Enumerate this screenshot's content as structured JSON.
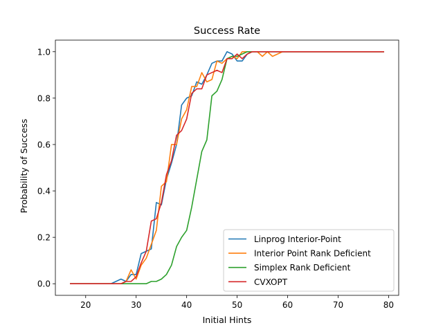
{
  "chart_data": {
    "type": "line",
    "title": "Success Rate",
    "xlabel": "Initial Hints",
    "ylabel": "Probability of Success",
    "xlim": [
      14,
      82
    ],
    "ylim": [
      -0.05,
      1.05
    ],
    "xticks": [
      20,
      30,
      40,
      50,
      60,
      70,
      80
    ],
    "yticks": [
      0.0,
      0.2,
      0.4,
      0.6,
      0.8,
      1.0
    ],
    "xtick_labels": [
      "20",
      "30",
      "40",
      "50",
      "60",
      "70",
      "80"
    ],
    "ytick_labels": [
      "0.0",
      "0.2",
      "0.4",
      "0.6",
      "0.8",
      "1.0"
    ],
    "grid": false,
    "legend_position": "lower-right",
    "x": [
      17,
      18,
      19,
      20,
      21,
      22,
      23,
      24,
      25,
      26,
      27,
      28,
      29,
      30,
      31,
      32,
      33,
      34,
      35,
      36,
      37,
      38,
      39,
      40,
      41,
      42,
      43,
      44,
      45,
      46,
      47,
      48,
      49,
      50,
      51,
      52,
      53,
      54,
      55,
      56,
      57,
      58,
      59,
      60,
      61,
      62,
      63,
      64,
      65,
      66,
      67,
      68,
      69,
      70,
      71,
      72,
      73,
      74,
      75,
      76,
      77,
      78,
      79
    ],
    "series": [
      {
        "name": "Linprog Interior-Point",
        "color": "#1f77b4",
        "values": [
          0,
          0,
          0,
          0,
          0,
          0,
          0,
          0,
          0,
          0.01,
          0.02,
          0.01,
          0.04,
          0.04,
          0.13,
          0.14,
          0.15,
          0.35,
          0.34,
          0.45,
          0.52,
          0.6,
          0.77,
          0.8,
          0.81,
          0.87,
          0.86,
          0.9,
          0.95,
          0.96,
          0.96,
          1.0,
          0.99,
          0.96,
          0.96,
          0.99,
          1.0,
          1.0,
          1.0,
          1.0,
          1.0,
          1.0,
          1.0,
          1.0,
          1.0,
          1.0,
          1.0,
          1.0,
          1.0,
          1.0,
          1.0,
          1.0,
          1.0,
          1.0,
          1.0,
          1.0,
          1.0,
          1.0,
          1.0,
          1.0,
          1.0,
          1.0,
          1.0
        ]
      },
      {
        "name": "Interior Point Rank Deficient",
        "color": "#ff7f0e",
        "values": [
          0,
          0,
          0,
          0,
          0,
          0,
          0,
          0,
          0,
          0,
          0,
          0.01,
          0.06,
          0.02,
          0.08,
          0.11,
          0.17,
          0.23,
          0.42,
          0.44,
          0.6,
          0.6,
          0.71,
          0.75,
          0.85,
          0.85,
          0.91,
          0.87,
          0.88,
          0.96,
          0.95,
          0.97,
          0.98,
          0.97,
          1.0,
          1.0,
          1.0,
          1.0,
          0.98,
          1.0,
          0.98,
          0.99,
          1.0,
          1.0,
          1.0,
          1.0,
          1.0,
          1.0,
          1.0,
          1.0,
          1.0,
          1.0,
          1.0,
          1.0,
          1.0,
          1.0,
          1.0,
          1.0,
          1.0,
          1.0,
          1.0,
          1.0,
          1.0
        ]
      },
      {
        "name": "Simplex Rank Deficient",
        "color": "#2ca02c",
        "values": [
          0,
          0,
          0,
          0,
          0,
          0,
          0,
          0,
          0,
          0,
          0,
          0,
          0,
          0,
          0,
          0,
          0.01,
          0.01,
          0.02,
          0.04,
          0.08,
          0.16,
          0.2,
          0.23,
          0.33,
          0.45,
          0.57,
          0.62,
          0.81,
          0.83,
          0.88,
          0.97,
          0.98,
          0.98,
          0.99,
          1.0,
          1.0,
          1.0,
          1.0,
          1.0,
          1.0,
          1.0,
          1.0,
          1.0,
          1.0,
          1.0,
          1.0,
          1.0,
          1.0,
          1.0,
          1.0,
          1.0,
          1.0,
          1.0,
          1.0,
          1.0,
          1.0,
          1.0,
          1.0,
          1.0,
          1.0,
          1.0,
          1.0
        ]
      },
      {
        "name": "CVXOPT",
        "color": "#d62728",
        "values": [
          0,
          0,
          0,
          0,
          0,
          0,
          0,
          0,
          0,
          0,
          0,
          0.01,
          0.01,
          0.03,
          0.09,
          0.14,
          0.27,
          0.28,
          0.35,
          0.47,
          0.53,
          0.64,
          0.66,
          0.71,
          0.82,
          0.84,
          0.84,
          0.9,
          0.91,
          0.92,
          0.91,
          0.97,
          0.97,
          0.99,
          0.97,
          0.99,
          1.0,
          1.0,
          1.0,
          1.0,
          1.0,
          1.0,
          1.0,
          1.0,
          1.0,
          1.0,
          1.0,
          1.0,
          1.0,
          1.0,
          1.0,
          1.0,
          1.0,
          1.0,
          1.0,
          1.0,
          1.0,
          1.0,
          1.0,
          1.0,
          1.0,
          1.0,
          1.0
        ]
      }
    ]
  }
}
